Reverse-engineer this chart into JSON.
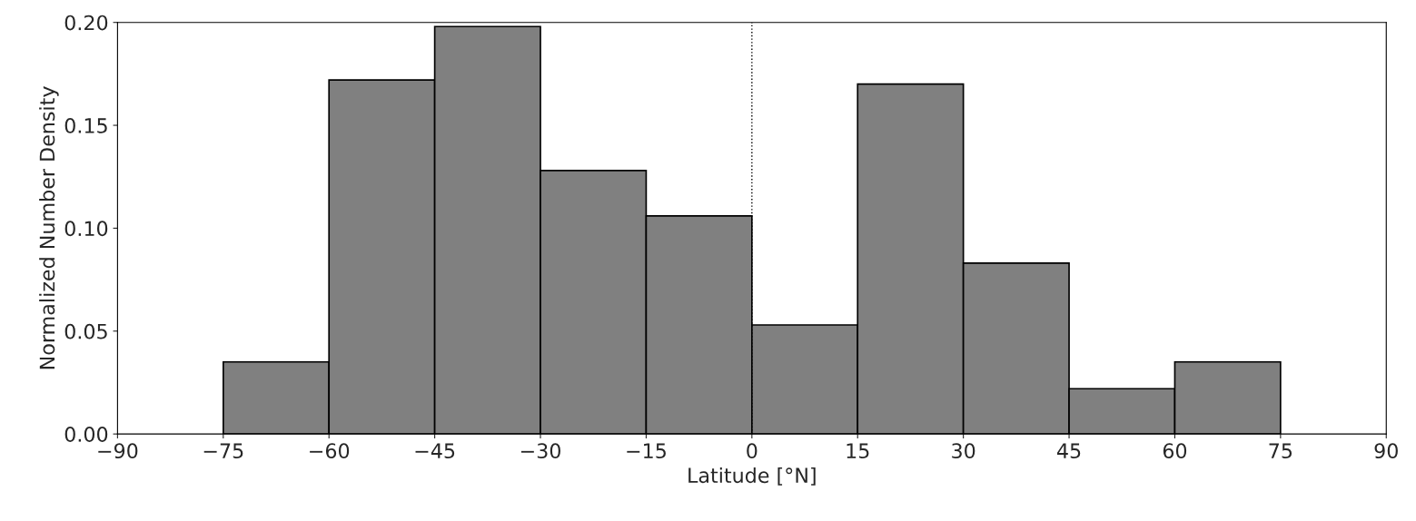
{
  "chart_data": {
    "type": "histogram",
    "xlabel": "Latitude [°N]",
    "ylabel": "Normalized Number Density",
    "bins": [
      -75,
      -60,
      -45,
      -30,
      -15,
      0,
      15,
      30,
      45,
      60,
      75
    ],
    "values": [
      0.035,
      0.172,
      0.198,
      0.128,
      0.106,
      0.053,
      0.17,
      0.083,
      0.022,
      0.035
    ],
    "color": "#808080",
    "xlim": [
      -90,
      90
    ],
    "xticks": [
      -90,
      -75,
      -60,
      -45,
      -30,
      -15,
      0,
      15,
      30,
      45,
      60,
      75,
      90
    ],
    "ylim": [
      0,
      0.2
    ],
    "yticks": [
      {
        "value": 0,
        "label": "0.00"
      },
      {
        "value": 0.05,
        "label": "0.05"
      },
      {
        "value": 0.1,
        "label": "0.10"
      },
      {
        "value": 0.15,
        "label": "0.15"
      },
      {
        "value": 0.2,
        "label": "0.20"
      }
    ],
    "ref_lines": [
      {
        "axis": "x",
        "value": 0,
        "color": "#000000",
        "line_style": "dotted"
      }
    ],
    "grid": false,
    "legend": false
  }
}
